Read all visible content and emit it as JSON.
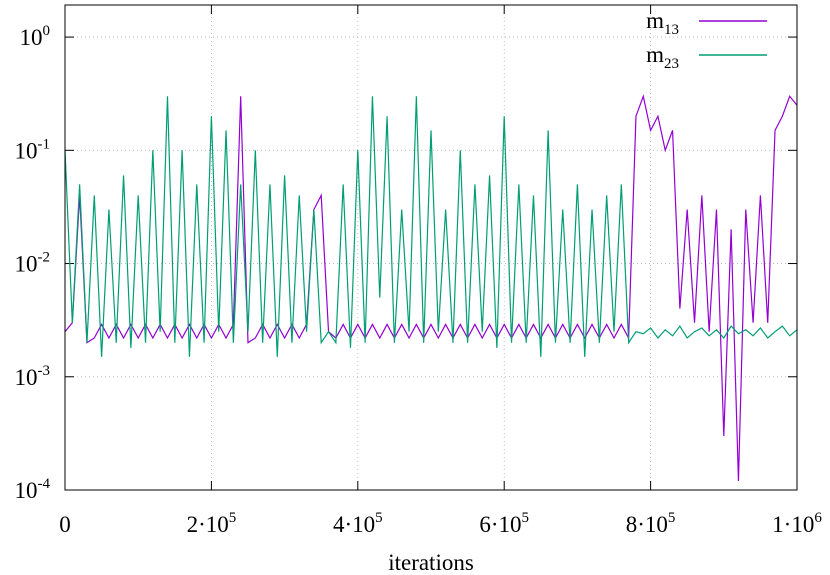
{
  "chart_data": {
    "type": "line",
    "xlabel": "iterations",
    "log_y": true,
    "grid": true,
    "legend": "top-right",
    "xlim": [
      0,
      1000000
    ],
    "ylim": [
      0.0001,
      1.92
    ],
    "xticks": [
      0,
      {
        "value": 200000,
        "label": "2·10",
        "sup": "5"
      },
      {
        "value": 400000,
        "label": "4·10",
        "sup": "5"
      },
      {
        "value": 600000,
        "label": "6·10",
        "sup": "5"
      },
      {
        "value": 800000,
        "label": "8·10",
        "sup": "5"
      },
      {
        "value": 1000000,
        "label": "1·10",
        "sup": "6"
      }
    ],
    "yticks": [
      {
        "value": 0.0001,
        "label": "10",
        "sup": "-4"
      },
      {
        "value": 0.001,
        "label": "10",
        "sup": "-3"
      },
      {
        "value": 0.01,
        "label": "10",
        "sup": "-2"
      },
      {
        "value": 0.1,
        "label": "10",
        "sup": "-1"
      },
      {
        "value": 1,
        "label": "10",
        "sup": "0"
      }
    ],
    "x": [
      0,
      10000,
      20000,
      30000,
      40000,
      50000,
      60000,
      70000,
      80000,
      90000,
      100000,
      110000,
      120000,
      130000,
      140000,
      150000,
      160000,
      170000,
      180000,
      190000,
      200000,
      210000,
      220000,
      230000,
      240000,
      250000,
      260000,
      270000,
      280000,
      290000,
      300000,
      310000,
      320000,
      330000,
      340000,
      350000,
      360000,
      370000,
      380000,
      390000,
      400000,
      410000,
      420000,
      430000,
      440000,
      450000,
      460000,
      470000,
      480000,
      490000,
      500000,
      510000,
      520000,
      530000,
      540000,
      550000,
      560000,
      570000,
      580000,
      590000,
      600000,
      610000,
      620000,
      630000,
      640000,
      650000,
      660000,
      670000,
      680000,
      690000,
      700000,
      710000,
      720000,
      730000,
      740000,
      750000,
      760000,
      770000,
      780000,
      790000,
      800000,
      810000,
      820000,
      830000,
      840000,
      850000,
      860000,
      870000,
      880000,
      890000,
      900000,
      910000,
      920000,
      930000,
      940000,
      950000,
      960000,
      970000,
      980000,
      990000,
      1000000
    ],
    "series": [
      {
        "name": "m",
        "sub": "13",
        "color": "#9400d3",
        "values": [
          0.0025,
          0.003,
          0.04,
          0.002,
          0.0022,
          0.0029,
          0.0022,
          0.0029,
          0.0022,
          0.0029,
          0.0022,
          0.0029,
          0.0022,
          0.0029,
          0.0022,
          0.0029,
          0.0022,
          0.0029,
          0.0022,
          0.0029,
          0.0022,
          0.0029,
          0.0022,
          0.0029,
          0.3,
          0.002,
          0.0022,
          0.0029,
          0.0022,
          0.0029,
          0.0022,
          0.0029,
          0.0022,
          0.0029,
          0.03,
          0.04,
          0.0025,
          0.0022,
          0.0029,
          0.0022,
          0.0029,
          0.0022,
          0.0029,
          0.0022,
          0.0029,
          0.0022,
          0.0029,
          0.0022,
          0.0029,
          0.0022,
          0.0029,
          0.0022,
          0.0029,
          0.0022,
          0.0029,
          0.0022,
          0.0029,
          0.0022,
          0.0029,
          0.0022,
          0.0029,
          0.0022,
          0.0029,
          0.0022,
          0.0029,
          0.0022,
          0.0029,
          0.0022,
          0.0029,
          0.0022,
          0.0029,
          0.0022,
          0.0029,
          0.0022,
          0.0029,
          0.0022,
          0.0029,
          0.0022,
          0.2,
          0.3,
          0.15,
          0.2,
          0.1,
          0.15,
          0.004,
          0.03,
          0.003,
          0.04,
          0.0025,
          0.03,
          0.0003,
          0.02,
          0.00012,
          0.03,
          0.003,
          0.04,
          0.003,
          0.15,
          0.2,
          0.3,
          0.25
        ]
      },
      {
        "name": "m",
        "sub": "23",
        "color": "#009e73",
        "values": [
          0.1,
          0.003,
          0.05,
          0.002,
          0.04,
          0.0015,
          0.03,
          0.002,
          0.06,
          0.0018,
          0.04,
          0.002,
          0.1,
          0.0025,
          0.3,
          0.002,
          0.1,
          0.0015,
          0.05,
          0.002,
          0.2,
          0.0025,
          0.15,
          0.002,
          0.05,
          0.0025,
          0.1,
          0.002,
          0.05,
          0.0015,
          0.06,
          0.002,
          0.04,
          0.0025,
          0.03,
          0.002,
          0.0025,
          0.002,
          0.05,
          0.0018,
          0.1,
          0.002,
          0.3,
          0.005,
          0.2,
          0.002,
          0.03,
          0.0025,
          0.3,
          0.002,
          0.15,
          0.0025,
          0.03,
          0.002,
          0.1,
          0.002,
          0.05,
          0.0025,
          0.06,
          0.0018,
          0.2,
          0.002,
          0.05,
          0.002,
          0.04,
          0.0015,
          0.15,
          0.002,
          0.03,
          0.002,
          0.05,
          0.0015,
          0.03,
          0.002,
          0.04,
          0.0025,
          0.05,
          0.002,
          0.0025,
          0.0024,
          0.0027,
          0.0022,
          0.0026,
          0.0023,
          0.0028,
          0.0022,
          0.0025,
          0.0027,
          0.0023,
          0.0026,
          0.0022,
          0.0028,
          0.0024,
          0.0026,
          0.0023,
          0.0027,
          0.0022,
          0.0025,
          0.0028,
          0.0023,
          0.0026
        ]
      }
    ]
  }
}
